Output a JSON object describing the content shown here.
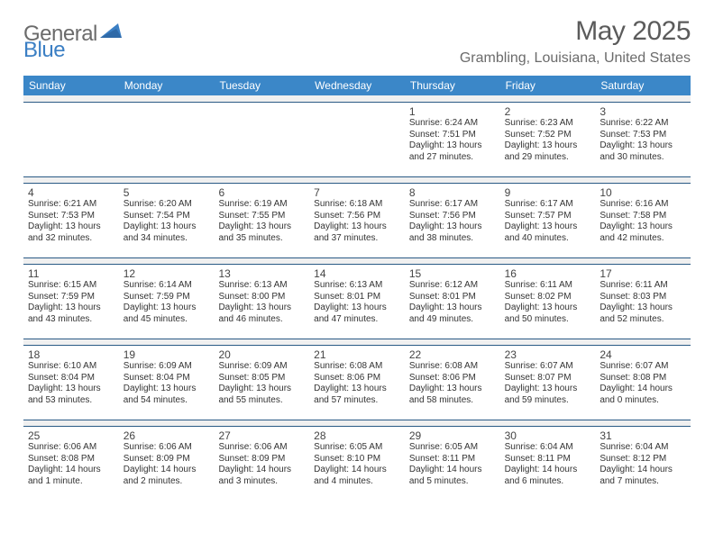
{
  "brand": {
    "part1": "General",
    "part2": "Blue"
  },
  "title": {
    "month": "May 2025",
    "location": "Grambling, Louisiana, United States"
  },
  "colors": {
    "header_bg": "#3b87c8",
    "border": "#2a5a85",
    "stripe": "#f0f0f0",
    "text_gray": "#5b5b5b",
    "brand_blue": "#3b7fc4"
  },
  "dows": [
    "Sunday",
    "Monday",
    "Tuesday",
    "Wednesday",
    "Thursday",
    "Friday",
    "Saturday"
  ],
  "weeks": [
    [
      null,
      null,
      null,
      null,
      {
        "n": "1",
        "sr": "6:24 AM",
        "ss": "7:51 PM",
        "dl": "13 hours and 27 minutes."
      },
      {
        "n": "2",
        "sr": "6:23 AM",
        "ss": "7:52 PM",
        "dl": "13 hours and 29 minutes."
      },
      {
        "n": "3",
        "sr": "6:22 AM",
        "ss": "7:53 PM",
        "dl": "13 hours and 30 minutes."
      }
    ],
    [
      {
        "n": "4",
        "sr": "6:21 AM",
        "ss": "7:53 PM",
        "dl": "13 hours and 32 minutes."
      },
      {
        "n": "5",
        "sr": "6:20 AM",
        "ss": "7:54 PM",
        "dl": "13 hours and 34 minutes."
      },
      {
        "n": "6",
        "sr": "6:19 AM",
        "ss": "7:55 PM",
        "dl": "13 hours and 35 minutes."
      },
      {
        "n": "7",
        "sr": "6:18 AM",
        "ss": "7:56 PM",
        "dl": "13 hours and 37 minutes."
      },
      {
        "n": "8",
        "sr": "6:17 AM",
        "ss": "7:56 PM",
        "dl": "13 hours and 38 minutes."
      },
      {
        "n": "9",
        "sr": "6:17 AM",
        "ss": "7:57 PM",
        "dl": "13 hours and 40 minutes."
      },
      {
        "n": "10",
        "sr": "6:16 AM",
        "ss": "7:58 PM",
        "dl": "13 hours and 42 minutes."
      }
    ],
    [
      {
        "n": "11",
        "sr": "6:15 AM",
        "ss": "7:59 PM",
        "dl": "13 hours and 43 minutes."
      },
      {
        "n": "12",
        "sr": "6:14 AM",
        "ss": "7:59 PM",
        "dl": "13 hours and 45 minutes."
      },
      {
        "n": "13",
        "sr": "6:13 AM",
        "ss": "8:00 PM",
        "dl": "13 hours and 46 minutes."
      },
      {
        "n": "14",
        "sr": "6:13 AM",
        "ss": "8:01 PM",
        "dl": "13 hours and 47 minutes."
      },
      {
        "n": "15",
        "sr": "6:12 AM",
        "ss": "8:01 PM",
        "dl": "13 hours and 49 minutes."
      },
      {
        "n": "16",
        "sr": "6:11 AM",
        "ss": "8:02 PM",
        "dl": "13 hours and 50 minutes."
      },
      {
        "n": "17",
        "sr": "6:11 AM",
        "ss": "8:03 PM",
        "dl": "13 hours and 52 minutes."
      }
    ],
    [
      {
        "n": "18",
        "sr": "6:10 AM",
        "ss": "8:04 PM",
        "dl": "13 hours and 53 minutes."
      },
      {
        "n": "19",
        "sr": "6:09 AM",
        "ss": "8:04 PM",
        "dl": "13 hours and 54 minutes."
      },
      {
        "n": "20",
        "sr": "6:09 AM",
        "ss": "8:05 PM",
        "dl": "13 hours and 55 minutes."
      },
      {
        "n": "21",
        "sr": "6:08 AM",
        "ss": "8:06 PM",
        "dl": "13 hours and 57 minutes."
      },
      {
        "n": "22",
        "sr": "6:08 AM",
        "ss": "8:06 PM",
        "dl": "13 hours and 58 minutes."
      },
      {
        "n": "23",
        "sr": "6:07 AM",
        "ss": "8:07 PM",
        "dl": "13 hours and 59 minutes."
      },
      {
        "n": "24",
        "sr": "6:07 AM",
        "ss": "8:08 PM",
        "dl": "14 hours and 0 minutes."
      }
    ],
    [
      {
        "n": "25",
        "sr": "6:06 AM",
        "ss": "8:08 PM",
        "dl": "14 hours and 1 minute."
      },
      {
        "n": "26",
        "sr": "6:06 AM",
        "ss": "8:09 PM",
        "dl": "14 hours and 2 minutes."
      },
      {
        "n": "27",
        "sr": "6:06 AM",
        "ss": "8:09 PM",
        "dl": "14 hours and 3 minutes."
      },
      {
        "n": "28",
        "sr": "6:05 AM",
        "ss": "8:10 PM",
        "dl": "14 hours and 4 minutes."
      },
      {
        "n": "29",
        "sr": "6:05 AM",
        "ss": "8:11 PM",
        "dl": "14 hours and 5 minutes."
      },
      {
        "n": "30",
        "sr": "6:04 AM",
        "ss": "8:11 PM",
        "dl": "14 hours and 6 minutes."
      },
      {
        "n": "31",
        "sr": "6:04 AM",
        "ss": "8:12 PM",
        "dl": "14 hours and 7 minutes."
      }
    ]
  ],
  "labels": {
    "sunrise": "Sunrise:",
    "sunset": "Sunset:",
    "daylight": "Daylight:"
  }
}
